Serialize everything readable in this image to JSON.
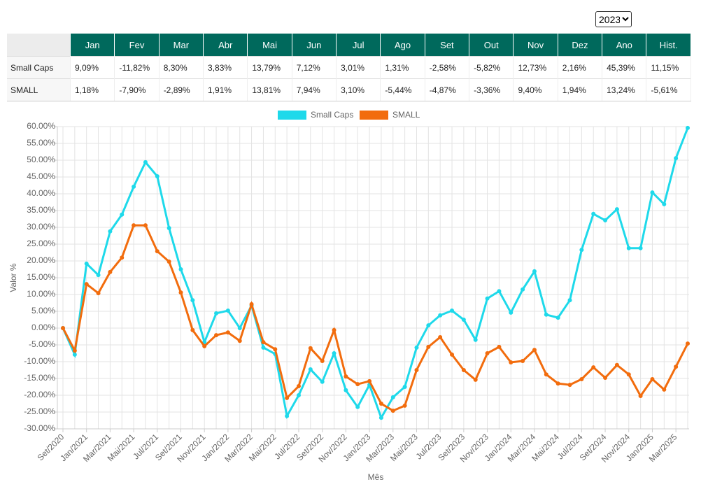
{
  "year_select": {
    "value": "2023"
  },
  "table": {
    "header": [
      "Jan",
      "Fev",
      "Mar",
      "Abr",
      "Mai",
      "Jun",
      "Jul",
      "Ago",
      "Set",
      "Out",
      "Nov",
      "Dez",
      "Ano",
      "Hist."
    ],
    "rows": [
      [
        "Small Caps",
        "9,09%",
        "-11,82%",
        "8,30%",
        "3,83%",
        "13,79%",
        "7,12%",
        "3,01%",
        "1,31%",
        "-2,58%",
        "-5,82%",
        "12,73%",
        "2,16%",
        "45,39%",
        "11,15%"
      ],
      [
        "SMALL",
        "1,18%",
        "-7,90%",
        "-2,89%",
        "1,91%",
        "13,81%",
        "7,94%",
        "3,10%",
        "-5,44%",
        "-4,87%",
        "-3,36%",
        "9,40%",
        "1,94%",
        "13,24%",
        "-5,61%"
      ]
    ]
  },
  "chart_data": {
    "type": "line",
    "y_label": "Valor %",
    "x_label": "Mês",
    "categories": [
      "Set/2020",
      null,
      "Jan/2021",
      null,
      "Mar/2021",
      null,
      "Mai/2021",
      null,
      "Jul/2021",
      null,
      "Set/2021",
      null,
      "Nov/2021",
      null,
      "Jan/2022",
      null,
      "Mar/2022",
      null,
      "Mai/2022",
      null,
      "Jul/2022",
      null,
      "Set/2022",
      null,
      "Nov/2022",
      null,
      "Jan/2023",
      null,
      "Mar/2023",
      null,
      "Mai/2023",
      null,
      "Jul/2023",
      null,
      "Set/2023",
      null,
      "Nov/2023",
      null,
      "Jan/2024",
      null,
      "Mar/2024",
      null,
      "Mai/2024",
      null,
      "Jul/2024",
      null,
      "Set/2024",
      null,
      "Nov/2024",
      null,
      "Jan/2025",
      null,
      "Mar/2025",
      null
    ],
    "series": [
      {
        "name": "Small Caps",
        "color": "#1ed9ea",
        "values": [
          0,
          -7.9,
          19.2,
          15.8,
          28.8,
          33.8,
          42.1,
          49.4,
          45.2,
          29.8,
          17.5,
          8.3,
          -4.2,
          4.4,
          5.2,
          0,
          6.7,
          -5.8,
          -7.7,
          -26.2,
          -20,
          -12.3,
          -16,
          -7.5,
          -18.5,
          -23.5,
          -16.9,
          -26.7,
          -20.6,
          -17.5,
          -5.8,
          0.8,
          3.8,
          5.2,
          2.5,
          -3.5,
          8.8,
          11.0,
          4.6,
          11.5,
          16.9,
          4.0,
          3.1,
          8.3,
          23.3,
          34.0,
          32.1,
          35.4,
          23.8,
          23.8,
          40.4,
          36.9,
          50.6,
          59.6
        ]
      },
      {
        "name": "SMALL",
        "color": "#f26c0d",
        "values": [
          0,
          -6.7,
          13.1,
          10.4,
          16.7,
          21.0,
          30.6,
          30.6,
          22.9,
          19.8,
          10.6,
          -0.6,
          -5.4,
          -2.1,
          -1.3,
          -3.8,
          7.1,
          -4.2,
          -6.3,
          -20.8,
          -17.3,
          -6.0,
          -9.8,
          -0.6,
          -14.4,
          -16.7,
          -15.8,
          -22.5,
          -24.6,
          -23.1,
          -12.5,
          -5.6,
          -2.7,
          -7.9,
          -12.5,
          -15.4,
          -7.5,
          -5.6,
          -10.2,
          -9.8,
          -6.5,
          -13.8,
          -16.5,
          -16.9,
          -15.2,
          -11.7,
          -14.8,
          -11.0,
          -13.8,
          -20.2,
          -15.2,
          -18.3,
          -11.5,
          -4.6
        ]
      }
    ],
    "ylim": [
      -30,
      60
    ],
    "yticks": [
      {
        "value": -30,
        "label": "-30.00%"
      },
      {
        "value": -25,
        "label": "-25.00%"
      },
      {
        "value": -20,
        "label": "-20.00%"
      },
      {
        "value": -15,
        "label": "-15.00%"
      },
      {
        "value": -10,
        "label": "-10.00%"
      },
      {
        "value": -5,
        "label": "-5.00%"
      },
      {
        "value": 0,
        "label": "0.00%"
      },
      {
        "value": 5,
        "label": "5.00%"
      },
      {
        "value": 10,
        "label": "10.00%"
      },
      {
        "value": 15,
        "label": "15.00%"
      },
      {
        "value": 20,
        "label": "20.00%"
      },
      {
        "value": 25,
        "label": "25.00%"
      },
      {
        "value": 30,
        "label": "30.00%"
      },
      {
        "value": 35,
        "label": "35.00%"
      },
      {
        "value": 40,
        "label": "40.00%"
      },
      {
        "value": 45,
        "label": "45.00%"
      },
      {
        "value": 50,
        "label": "50.00%"
      },
      {
        "value": 55,
        "label": "55.00%"
      },
      {
        "value": 60,
        "label": "60.00%"
      }
    ],
    "grid": true,
    "legend": "top"
  }
}
